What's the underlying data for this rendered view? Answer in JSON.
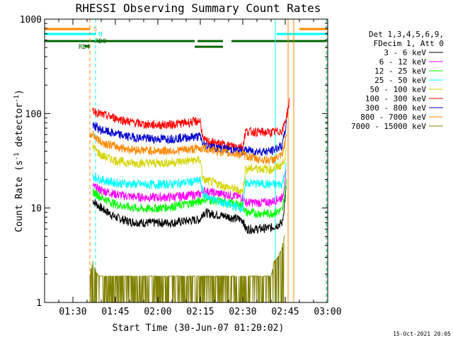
{
  "chart_data": {
    "type": "line",
    "title": "RHESSI Observing Summary Count Rates",
    "xlabel": "Start Time (30-Jun-07 01:20:02)",
    "ylabel_main": "Count Rate (s",
    "ylabel_sup1": "-1",
    "ylabel_mid": " detector",
    "ylabel_sup2": "-1",
    "ylabel_end": ")",
    "y_scale": "log",
    "ylim": [
      1,
      1000
    ],
    "xlim_minutes": [
      0,
      100
    ],
    "x_ticks": [
      {
        "minute": 10,
        "label": "01:30"
      },
      {
        "minute": 25,
        "label": "01:45"
      },
      {
        "minute": 40,
        "label": "02:00"
      },
      {
        "minute": 55,
        "label": "02:15"
      },
      {
        "minute": 70,
        "label": "02:30"
      },
      {
        "minute": 85,
        "label": "02:45"
      },
      {
        "minute": 100,
        "label": "03:00"
      }
    ],
    "y_ticks": [
      {
        "value": 1,
        "label": "1"
      },
      {
        "value": 10,
        "label": "10"
      },
      {
        "value": 100,
        "label": "100"
      },
      {
        "value": 1000,
        "label": "1000"
      }
    ],
    "legend_header": [
      "Det 1,3,4,5,6,9,",
      "FDecim 1, Att 0"
    ],
    "series": [
      {
        "name": "3 - 6 keV",
        "color": "#000000",
        "x": [
          17,
          20,
          25,
          30,
          35,
          40,
          45,
          50,
          55,
          56,
          60,
          65,
          70,
          71,
          75,
          80,
          84,
          85.5
        ],
        "y": [
          12,
          10,
          8,
          7.2,
          7,
          7,
          7,
          7.3,
          7.6,
          9,
          8.6,
          8.1,
          7.5,
          6,
          6,
          6.2,
          7,
          18
        ]
      },
      {
        "name": "6 - 12 keV",
        "color": "#ff00ff",
        "x": [
          17,
          20,
          25,
          30,
          35,
          40,
          45,
          50,
          55,
          56,
          60,
          65,
          70,
          71,
          75,
          80,
          84,
          85.5
        ],
        "y": [
          17,
          15.5,
          14,
          13.3,
          13,
          13,
          13.1,
          13.6,
          14,
          15.3,
          14.5,
          13.8,
          13,
          11.5,
          11.4,
          11.6,
          13,
          25
        ]
      },
      {
        "name": "12 - 25 keV",
        "color": "#00ff00",
        "x": [
          17,
          20,
          25,
          30,
          35,
          40,
          45,
          50,
          55,
          56,
          60,
          65,
          70,
          71,
          75,
          80,
          84,
          85.5
        ],
        "y": [
          15,
          13,
          11,
          10.2,
          9.8,
          10,
          10.4,
          11,
          11.8,
          12.5,
          12,
          11.3,
          10.8,
          9,
          8.8,
          8.8,
          9.5,
          20
        ]
      },
      {
        "name": "25 - 50 keV",
        "color": "#00ffff",
        "x": [
          17,
          20,
          25,
          30,
          35,
          40,
          45,
          50,
          55,
          56,
          60,
          65,
          70,
          71,
          75,
          80,
          84,
          85.5
        ],
        "y": [
          22,
          20,
          18.5,
          18,
          17.8,
          17.8,
          18,
          18.7,
          19.5,
          14,
          12.2,
          10.8,
          10,
          18.5,
          18.2,
          17.8,
          18,
          30
        ]
      },
      {
        "name": "50 - 100 keV",
        "color": "#d4d400",
        "x": [
          17,
          18,
          20,
          25,
          30,
          35,
          40,
          45,
          50,
          55,
          56,
          60,
          65,
          70,
          71,
          75,
          80,
          84,
          85.5
        ],
        "y": [
          45,
          42,
          36,
          32,
          30,
          30,
          30,
          30.5,
          31.5,
          32.5,
          20,
          18.5,
          16.5,
          15,
          26,
          26.5,
          25.5,
          29,
          40
        ]
      },
      {
        "name": "100 - 300 keV",
        "color": "#ff0000",
        "x": [
          17,
          18,
          20,
          25,
          30,
          35,
          40,
          45,
          50,
          55,
          56,
          60,
          65,
          70,
          71,
          75,
          80,
          84,
          85.5,
          86.5
        ],
        "y": [
          110,
          105,
          98,
          90,
          82,
          77,
          76,
          77,
          80,
          84,
          52,
          49,
          46,
          45,
          65,
          64,
          63,
          66,
          95,
          135
        ]
      },
      {
        "name": "300 - 800 keV",
        "color": "#0000cc",
        "x": [
          17,
          18,
          20,
          25,
          30,
          35,
          40,
          45,
          50,
          55,
          56,
          60,
          65,
          70,
          71,
          75,
          80,
          84,
          85.5
        ],
        "y": [
          78,
          73,
          67,
          61,
          57,
          55,
          54,
          54.5,
          56,
          57.5,
          47,
          44,
          42,
          40,
          41,
          40,
          40,
          46,
          82
        ]
      },
      {
        "name": "800 - 7000 keV",
        "color": "#ff8800",
        "x": [
          16,
          17,
          18,
          20,
          25,
          30,
          35,
          40,
          45,
          50,
          55,
          56,
          60,
          65,
          70,
          71,
          75,
          80,
          84,
          85.5
        ],
        "y": [
          58,
          62,
          56,
          50,
          45,
          42,
          41,
          40.5,
          40.5,
          41.5,
          43,
          43,
          41,
          38,
          37,
          36,
          33,
          32,
          36,
          60
        ]
      },
      {
        "name": "7000 - 15000 keV",
        "color": "#808000",
        "x": [
          16,
          17,
          18,
          19,
          20,
          40,
          50,
          60,
          70,
          76,
          78,
          80,
          80.5,
          81,
          82,
          83,
          84,
          84.5,
          85
        ],
        "y": [
          1.9,
          2.8,
          2.2,
          1.9,
          1.9,
          1.9,
          1.9,
          1.9,
          1.9,
          1.9,
          1.9,
          1.9,
          2.2,
          2.7,
          2.9,
          3.3,
          4.0,
          4.8,
          5.2
        ]
      }
    ],
    "flags": [
      {
        "label": "S",
        "color": "#ff8800"
      },
      {
        "label": "N",
        "color": "#00ffff"
      },
      {
        "label": "RD0",
        "color": "#006600"
      },
      {
        "label": "RD4",
        "color": "#006600"
      }
    ],
    "vlines": [
      {
        "minute": 16,
        "color": "#ff8800",
        "style": "dashed"
      },
      {
        "minute": 18,
        "color": "#00ffff",
        "style": "dashed"
      },
      {
        "minute": 81.5,
        "color": "#00ffff",
        "style": "solid"
      },
      {
        "minute": 86,
        "color": "#ff8800",
        "style": "solid"
      },
      {
        "minute": 88,
        "color": "#ff8800",
        "style": "solid"
      },
      {
        "minute": 99.5,
        "color": "#ff8800",
        "style": "dashed"
      },
      {
        "minute": 99.7,
        "color": "#00ffff",
        "style": "dashed"
      }
    ],
    "footer_date": "15-Oct-2021 20:05"
  }
}
